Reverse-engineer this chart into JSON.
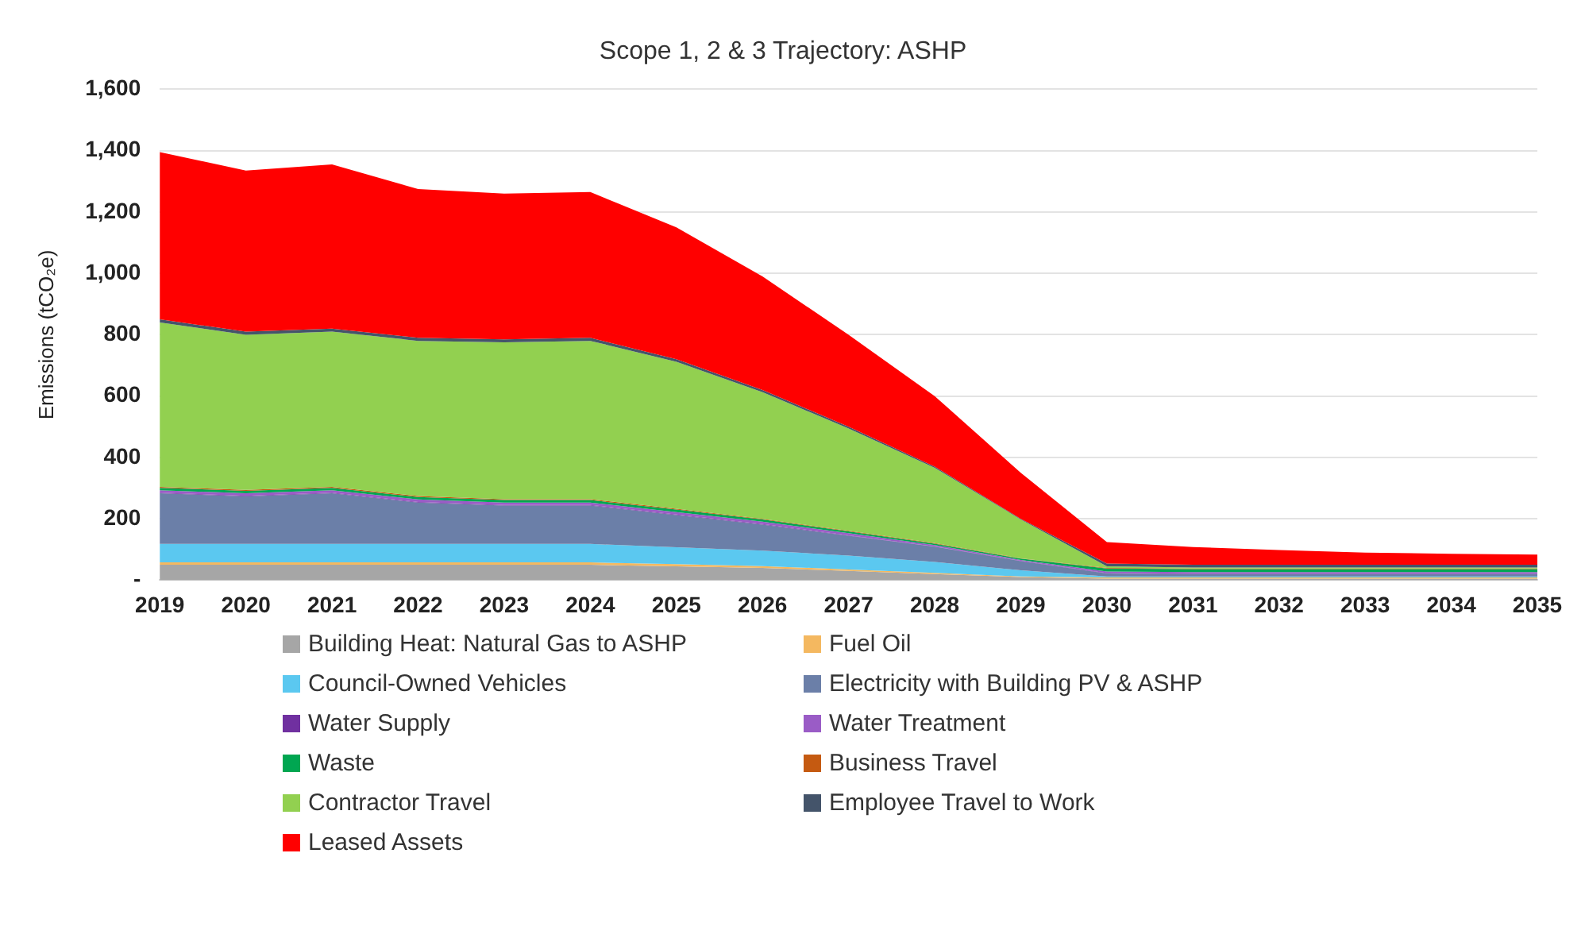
{
  "chart_data": {
    "type": "area",
    "title": "Scope 1, 2 & 3 Trajectory: ASHP",
    "ylabel": "Emissions (tCO₂e)",
    "stacked": true,
    "grid": "y",
    "legend": "bottom",
    "categories": [
      "2019",
      "2020",
      "2021",
      "2022",
      "2023",
      "2024",
      "2025",
      "2026",
      "2027",
      "2028",
      "2029",
      "2030",
      "2031",
      "2032",
      "2033",
      "2034",
      "2035"
    ],
    "ylim": [
      0,
      1600
    ],
    "yticks": [
      {
        "value": 0,
        "label": "-"
      },
      200,
      400,
      600,
      800,
      {
        "value": 1000,
        "label": "1,000"
      },
      {
        "value": 1200,
        "label": "1,200"
      },
      {
        "value": 1400,
        "label": "1,400"
      },
      {
        "value": 1600,
        "label": "1,600"
      }
    ],
    "series": [
      {
        "name": "Building Heat: Natural Gas to ASHP",
        "color": "#a6a6a6",
        "values": [
          50,
          50,
          50,
          50,
          50,
          50,
          45,
          40,
          30,
          20,
          10,
          5,
          5,
          5,
          5,
          5,
          5
        ]
      },
      {
        "name": "Fuel Oil",
        "color": "#f4b860",
        "values": [
          8,
          8,
          8,
          8,
          8,
          8,
          7,
          6,
          5,
          4,
          2,
          4,
          4,
          4,
          4,
          4,
          4
        ]
      },
      {
        "name": "Council-Owned Vehicles",
        "color": "#5bc8f0",
        "values": [
          60,
          60,
          60,
          60,
          60,
          60,
          55,
          50,
          45,
          35,
          20,
          3,
          3,
          3,
          3,
          3,
          3
        ]
      },
      {
        "name": "Electricity with Building PV & ASHP",
        "color": "#6b7fa8",
        "values": [
          165,
          155,
          165,
          135,
          125,
          125,
          105,
          85,
          65,
          50,
          30,
          10,
          8,
          8,
          8,
          8,
          8
        ]
      },
      {
        "name": "Water Supply",
        "color": "#7030a0",
        "values": [
          2,
          2,
          2,
          2,
          2,
          2,
          2,
          2,
          1,
          1,
          1,
          1,
          1,
          1,
          1,
          1,
          1
        ]
      },
      {
        "name": "Water Treatment",
        "color": "#9a5cc6",
        "values": [
          8,
          8,
          8,
          8,
          8,
          8,
          8,
          8,
          7,
          4,
          3,
          5,
          5,
          5,
          5,
          5,
          5
        ]
      },
      {
        "name": "Waste",
        "color": "#00a651",
        "values": [
          8,
          8,
          8,
          8,
          8,
          8,
          8,
          7,
          6,
          5,
          4,
          10,
          10,
          10,
          10,
          10,
          10
        ]
      },
      {
        "name": "Business Travel",
        "color": "#c55a11",
        "values": [
          3,
          3,
          3,
          3,
          3,
          3,
          3,
          2,
          2,
          2,
          1,
          2,
          2,
          2,
          2,
          2,
          2
        ]
      },
      {
        "name": "Contractor Travel",
        "color": "#92d050",
        "values": [
          536,
          506,
          506,
          506,
          511,
          516,
          479,
          413,
          333,
          245,
          127,
          5,
          3,
          3,
          3,
          3,
          3
        ]
      },
      {
        "name": "Employee Travel to Work",
        "color": "#44546a",
        "values": [
          10,
          10,
          10,
          10,
          10,
          10,
          8,
          7,
          6,
          4,
          2,
          9,
          9,
          9,
          9,
          9,
          9
        ]
      },
      {
        "name": "Leased Assets",
        "color": "#ff0000",
        "values": [
          545,
          525,
          535,
          485,
          475,
          475,
          430,
          370,
          300,
          230,
          150,
          70,
          58,
          48,
          40,
          36,
          33
        ]
      }
    ]
  }
}
